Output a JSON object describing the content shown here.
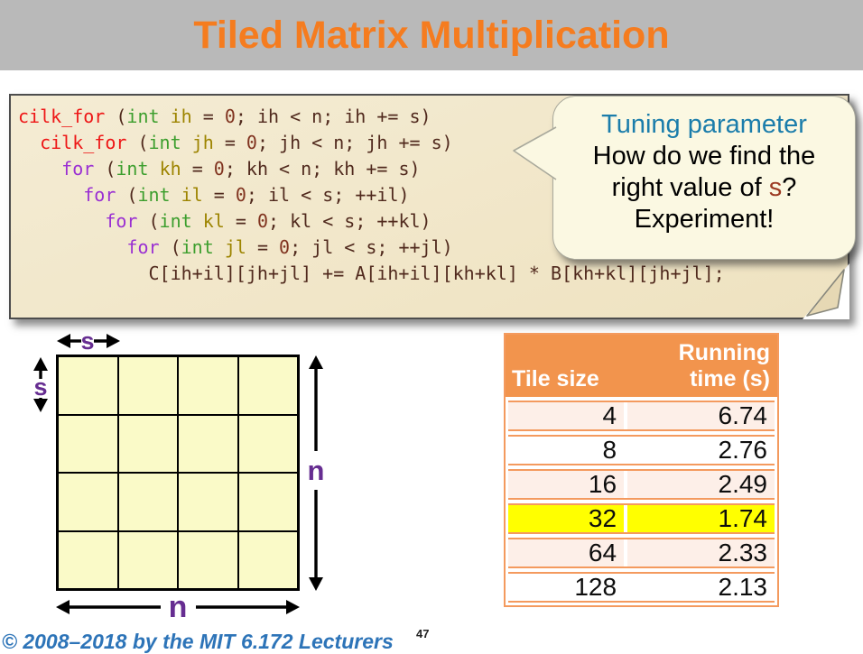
{
  "header": {
    "title": "Tiled Matrix Multiplication"
  },
  "code": {
    "lines": [
      [
        {
          "c": "k1",
          "t": "cilk_for"
        },
        {
          "c": "pl",
          "t": " ("
        },
        {
          "c": "ty",
          "t": "int"
        },
        {
          "c": "pl",
          "t": " "
        },
        {
          "c": "vd",
          "t": "ih"
        },
        {
          "c": "pl",
          "t": " = "
        },
        {
          "c": "nu",
          "t": "0"
        },
        {
          "c": "pl",
          "t": "; ih < n; ih += s)"
        }
      ],
      [
        {
          "c": "pl",
          "t": "  "
        },
        {
          "c": "k1",
          "t": "cilk_for"
        },
        {
          "c": "pl",
          "t": " ("
        },
        {
          "c": "ty",
          "t": "int"
        },
        {
          "c": "pl",
          "t": " "
        },
        {
          "c": "vd",
          "t": "jh"
        },
        {
          "c": "pl",
          "t": " = "
        },
        {
          "c": "nu",
          "t": "0"
        },
        {
          "c": "pl",
          "t": "; jh < n; jh += s)"
        }
      ],
      [
        {
          "c": "pl",
          "t": "    "
        },
        {
          "c": "k2",
          "t": "for"
        },
        {
          "c": "pl",
          "t": " ("
        },
        {
          "c": "ty",
          "t": "int"
        },
        {
          "c": "pl",
          "t": " "
        },
        {
          "c": "vd",
          "t": "kh"
        },
        {
          "c": "pl",
          "t": " = "
        },
        {
          "c": "nu",
          "t": "0"
        },
        {
          "c": "pl",
          "t": "; kh < n; kh += s)"
        }
      ],
      [
        {
          "c": "pl",
          "t": "      "
        },
        {
          "c": "k2",
          "t": "for"
        },
        {
          "c": "pl",
          "t": " ("
        },
        {
          "c": "ty",
          "t": "int"
        },
        {
          "c": "pl",
          "t": " "
        },
        {
          "c": "vd",
          "t": "il"
        },
        {
          "c": "pl",
          "t": " = "
        },
        {
          "c": "nu",
          "t": "0"
        },
        {
          "c": "pl",
          "t": "; il < s; ++il)"
        }
      ],
      [
        {
          "c": "pl",
          "t": "        "
        },
        {
          "c": "k2",
          "t": "for"
        },
        {
          "c": "pl",
          "t": " ("
        },
        {
          "c": "ty",
          "t": "int"
        },
        {
          "c": "pl",
          "t": " "
        },
        {
          "c": "vd",
          "t": "kl"
        },
        {
          "c": "pl",
          "t": " = "
        },
        {
          "c": "nu",
          "t": "0"
        },
        {
          "c": "pl",
          "t": "; kl < s; ++kl)"
        }
      ],
      [
        {
          "c": "pl",
          "t": "          "
        },
        {
          "c": "k2",
          "t": "for"
        },
        {
          "c": "pl",
          "t": " ("
        },
        {
          "c": "ty",
          "t": "int"
        },
        {
          "c": "pl",
          "t": " "
        },
        {
          "c": "vd",
          "t": "jl"
        },
        {
          "c": "pl",
          "t": " = "
        },
        {
          "c": "nu",
          "t": "0"
        },
        {
          "c": "pl",
          "t": "; jl < s; ++jl)"
        }
      ],
      [
        {
          "c": "pl",
          "t": "            C[ih+il][jh+jl] += A[ih+il][kh+kl] * B[kh+kl][jh+jl];"
        }
      ]
    ]
  },
  "bubble": {
    "title": "Tuning parameter",
    "body_line1": "How do we find the",
    "body_line2_pre": "right value of ",
    "s_var": "s",
    "body_line2_post": "?",
    "body_line3": "Experiment!"
  },
  "diagram": {
    "s_top": "s",
    "s_left": "s",
    "n_right": "n",
    "n_bottom": "n",
    "grid_rows": 4,
    "grid_cols": 4
  },
  "table": {
    "col1_header": "Tile size",
    "col2_header_line1": "Running",
    "col2_header_line2": "time (s)",
    "rows": [
      {
        "size": "4",
        "time": "6.74"
      },
      {
        "size": "8",
        "time": "2.76"
      },
      {
        "size": "16",
        "time": "2.49"
      },
      {
        "size": "32",
        "time": "1.74"
      },
      {
        "size": "64",
        "time": "2.33"
      },
      {
        "size": "128",
        "time": "2.13"
      }
    ],
    "highlighted_row_size": "32"
  },
  "footer": {
    "copyright": "© 2008–2018 by the MIT 6.172 Lecturers",
    "page_number": "47"
  },
  "colors": {
    "title_orange": "#f57c1f",
    "header_bar_gray": "#b9b9b9",
    "code_panel_tan": "#f1e6c8",
    "bubble_title_blue": "#1b7dab",
    "label_purple": "#662d91",
    "table_header_orange": "#f2944d",
    "table_border_orange": "#f49a5e",
    "table_row_pink": "#fdefe8",
    "highlight_yellow": "#ffff00",
    "grid_cell_yellow": "#fafac8",
    "copyright_blue": "#2d74b8"
  }
}
